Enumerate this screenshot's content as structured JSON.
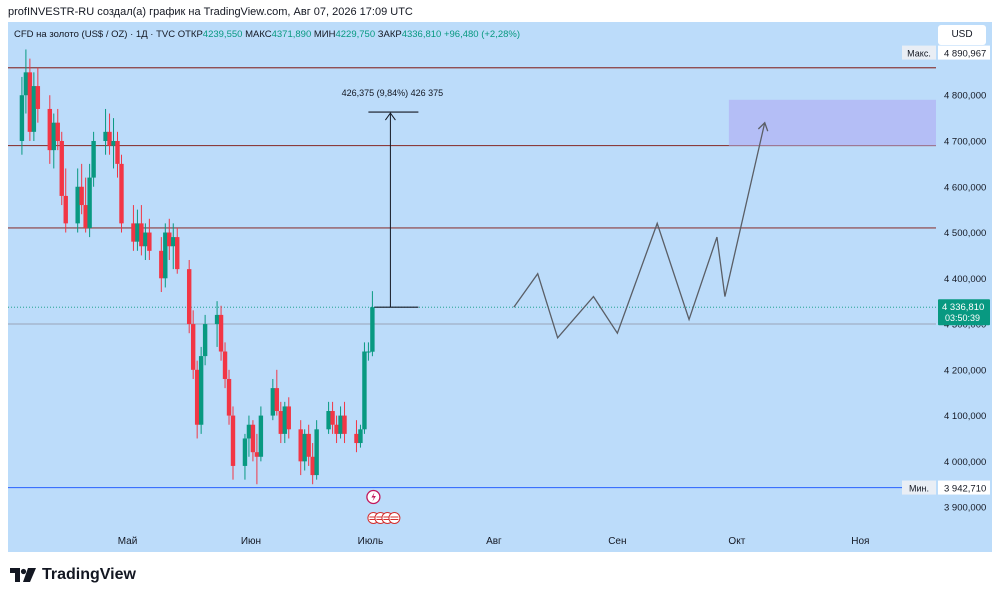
{
  "header": {
    "attribution": "profINVESTR-RU создал(а) график на TradingView.com, Авг 07, 2026 17:09 UTC"
  },
  "legend": {
    "symbol": "CFD на золото (US$ / OZ) · 1Д · TVC",
    "open_label": "ОТКР",
    "open": "4239,550",
    "high_label": "МАКС",
    "high": "4371,890",
    "low_label": "МИН",
    "low": "4229,750",
    "close_label": "ЗАКР",
    "close": "4336,810",
    "change": "+96,480 (+2,28%)"
  },
  "currency_button": "USD",
  "branding": {
    "logo_text": "TradingView"
  },
  "colors": {
    "up": "#089981",
    "down": "#f23645",
    "background": "#bcdcfa",
    "level_line": "#8b3c3c",
    "low_line": "#2962ff",
    "target_zone": "#b3b8f5"
  },
  "chart_data": {
    "type": "candlestick",
    "y_range": [
      3850000,
      4960000
    ],
    "y_ticks": [
      3900000,
      4000000,
      4100000,
      4200000,
      4300000,
      4400000,
      4500000,
      4600000,
      4700000,
      4800000
    ],
    "y_tick_labels": [
      "3 900,000",
      "4 000,000",
      "4 100,000",
      "4 200,000",
      "4 300,000",
      "4 400,000",
      "4 500,000",
      "4 600,000",
      "4 700,000",
      "4 800,000"
    ],
    "x_range": [
      "2026-04-01",
      "2026-11-20"
    ],
    "x_ticks": [
      {
        "date": "2026-05-01",
        "label": "Май"
      },
      {
        "date": "2026-06-01",
        "label": "Июн"
      },
      {
        "date": "2026-07-01",
        "label": "Июль"
      },
      {
        "date": "2026-08-01",
        "label": "Авг"
      },
      {
        "date": "2026-09-01",
        "label": "Сен"
      },
      {
        "date": "2026-10-01",
        "label": "Окт"
      },
      {
        "date": "2026-11-01",
        "label": "Ноя"
      }
    ],
    "max": {
      "label": "Макс.",
      "value": "4 890,967",
      "price": 4890967
    },
    "min": {
      "label": "Мин.",
      "value": "3 942,710",
      "price": 3942710
    },
    "last_price": {
      "value": "4 336,810",
      "countdown": "03:50:39",
      "price": 4336810
    },
    "reference_price": 4300000,
    "levels": [
      4860000,
      4690000,
      4510000
    ],
    "candles": [
      [
        4700000,
        4840000,
        4670000,
        4800000
      ],
      [
        4800000,
        4900000,
        4760000,
        4850000
      ],
      [
        4850000,
        4880000,
        4700000,
        4720000
      ],
      [
        4720000,
        4850000,
        4700000,
        4820000
      ],
      [
        4820000,
        4860000,
        4740000,
        4770000
      ],
      [
        4770000,
        4800000,
        4650000,
        4680000
      ],
      [
        4680000,
        4760000,
        4640000,
        4740000
      ],
      [
        4740000,
        4770000,
        4680000,
        4700000
      ],
      [
        4700000,
        4720000,
        4560000,
        4580000
      ],
      [
        4580000,
        4640000,
        4500000,
        4520000
      ],
      [
        4520000,
        4640000,
        4500000,
        4600000
      ],
      [
        4600000,
        4650000,
        4540000,
        4560000
      ],
      [
        4560000,
        4620000,
        4500000,
        4510000
      ],
      [
        4510000,
        4650000,
        4490000,
        4620000
      ],
      [
        4620000,
        4720000,
        4600000,
        4700000
      ],
      [
        4700000,
        4770000,
        4670000,
        4720000
      ],
      [
        4720000,
        4760000,
        4670000,
        4690000
      ],
      [
        4690000,
        4750000,
        4640000,
        4700000
      ],
      [
        4700000,
        4720000,
        4620000,
        4650000
      ],
      [
        4650000,
        4670000,
        4500000,
        4520000
      ],
      [
        4520000,
        4560000,
        4460000,
        4480000
      ],
      [
        4480000,
        4550000,
        4460000,
        4520000
      ],
      [
        4520000,
        4560000,
        4450000,
        4470000
      ],
      [
        4470000,
        4520000,
        4440000,
        4500000
      ],
      [
        4500000,
        4530000,
        4440000,
        4460000
      ],
      [
        4460000,
        4490000,
        4370000,
        4400000
      ],
      [
        4400000,
        4520000,
        4380000,
        4500000
      ],
      [
        4500000,
        4530000,
        4440000,
        4470000
      ],
      [
        4470000,
        4520000,
        4420000,
        4490000
      ],
      [
        4490000,
        4510000,
        4410000,
        4420000
      ],
      [
        4420000,
        4440000,
        4280000,
        4300000
      ],
      [
        4300000,
        4330000,
        4180000,
        4200000
      ],
      [
        4200000,
        4220000,
        4050000,
        4080000
      ],
      [
        4080000,
        4250000,
        4060000,
        4230000
      ],
      [
        4230000,
        4320000,
        4210000,
        4300000
      ],
      [
        4300000,
        4350000,
        4250000,
        4320000
      ],
      [
        4320000,
        4340000,
        4220000,
        4240000
      ],
      [
        4240000,
        4260000,
        4160000,
        4180000
      ],
      [
        4180000,
        4200000,
        4080000,
        4100000
      ],
      [
        4100000,
        4120000,
        3960000,
        3990000
      ],
      [
        3990000,
        4060000,
        3960000,
        4050000
      ],
      [
        4050000,
        4100000,
        4010000,
        4080000
      ],
      [
        4080000,
        4090000,
        4000000,
        4020000
      ],
      [
        4020000,
        4060000,
        3950000,
        4010000
      ],
      [
        4010000,
        4120000,
        4000000,
        4100000
      ],
      [
        4100000,
        4180000,
        4090000,
        4160000
      ],
      [
        4160000,
        4200000,
        4100000,
        4110000
      ],
      [
        4110000,
        4130000,
        4040000,
        4060000
      ],
      [
        4060000,
        4130000,
        4040000,
        4120000
      ],
      [
        4120000,
        4140000,
        4050000,
        4070000
      ],
      [
        4070000,
        4090000,
        3970000,
        4000000
      ],
      [
        4000000,
        4070000,
        3980000,
        4060000
      ],
      [
        4060000,
        4080000,
        3990000,
        4010000
      ],
      [
        4010000,
        4040000,
        3950000,
        3970000
      ],
      [
        3970000,
        4090000,
        3960000,
        4070000
      ],
      [
        4070000,
        4130000,
        4060000,
        4110000
      ],
      [
        4110000,
        4130000,
        4060000,
        4080000
      ],
      [
        4080000,
        4100000,
        4040000,
        4060000
      ],
      [
        4060000,
        4120000,
        4050000,
        4100000
      ],
      [
        4100000,
        4130000,
        4040000,
        4060000
      ],
      [
        4060000,
        4090000,
        4020000,
        4040000
      ],
      [
        4040000,
        4080000,
        4030000,
        4070000
      ],
      [
        4070000,
        4260000,
        4060000,
        4240000
      ],
      [
        4240000,
        4260000,
        4220000,
        4240000
      ],
      [
        4239550,
        4371890,
        4229750,
        4336810
      ]
    ],
    "measure": {
      "label": "426,375 (9,84%) 426 375",
      "from_price": 4336810,
      "to_price": 4763185
    },
    "target_zone": {
      "from_price": 4690000,
      "to_price": 4790000,
      "from_date": "2026-09-29",
      "to_date": "2026-11-20"
    },
    "projection": [
      [
        "2026-08-06",
        4336810
      ],
      [
        "2026-08-12",
        4410000
      ],
      [
        "2026-08-17",
        4270000
      ],
      [
        "2026-08-26",
        4360000
      ],
      [
        "2026-09-01",
        4280000
      ],
      [
        "2026-09-11",
        4520000
      ],
      [
        "2026-09-19",
        4310000
      ],
      [
        "2026-09-26",
        4490000
      ],
      [
        "2026-09-28",
        4360000
      ],
      [
        "2026-10-08",
        4740000
      ]
    ]
  }
}
